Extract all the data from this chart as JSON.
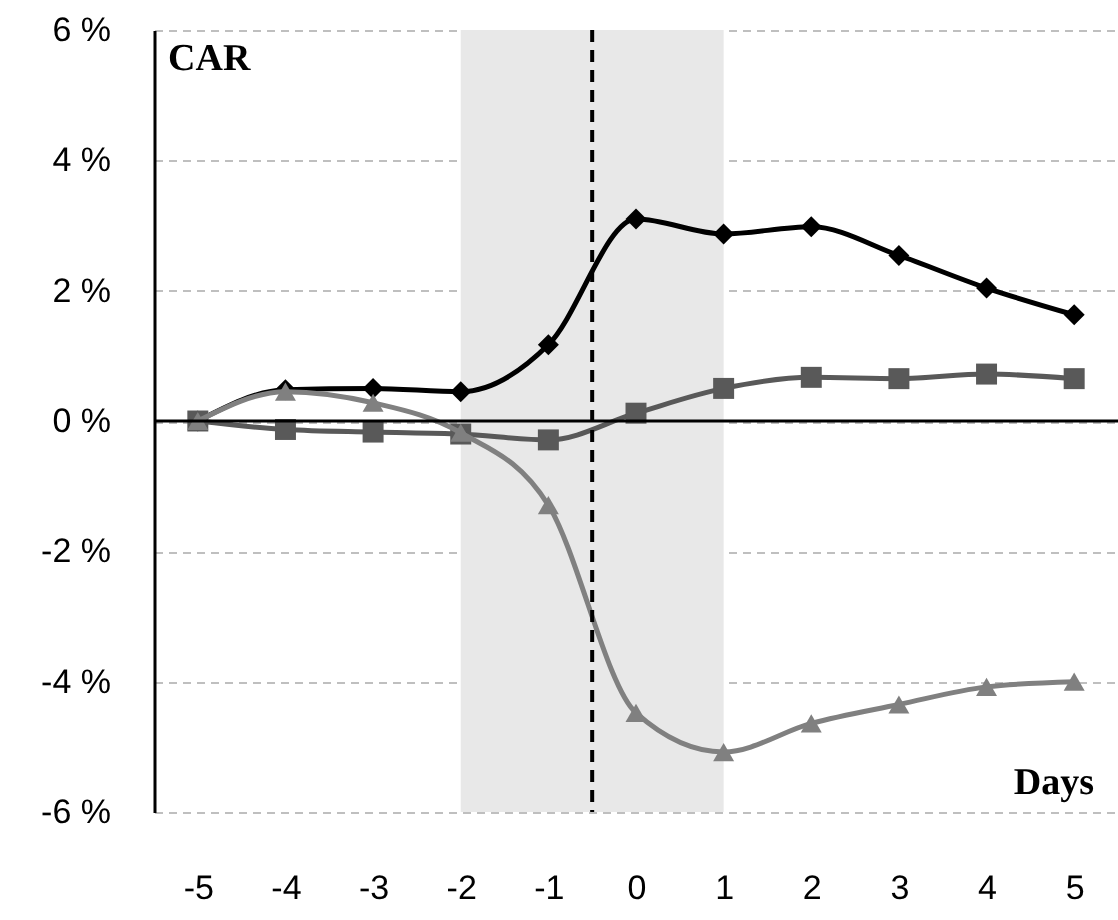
{
  "chart_data": {
    "type": "line",
    "xlabel": "Days",
    "ylabel": "CAR",
    "x": [
      -5,
      -4,
      -3,
      -2,
      -1,
      0,
      1,
      2,
      3,
      4,
      5
    ],
    "xlim": [
      -5.5,
      5.5
    ],
    "xticks": [
      -5,
      -4,
      -3,
      -2,
      -1,
      0,
      1,
      2,
      3,
      4,
      5
    ],
    "ylim": [
      -6,
      6
    ],
    "yticks": [
      {
        "value": -6,
        "label": "-6 %"
      },
      {
        "value": -4,
        "label": "-4 %"
      },
      {
        "value": -2,
        "label": "-2 %"
      },
      {
        "value": 0,
        "label": "0 %"
      },
      {
        "value": 2,
        "label": "2 %"
      },
      {
        "value": 4,
        "label": "4 %"
      },
      {
        "value": 6,
        "label": "6 %"
      }
    ],
    "grid": "y",
    "line_style": "solid",
    "series": [
      {
        "color": "#000000",
        "marker": "diamond",
        "values": [
          0,
          0.48,
          0.5,
          0.45,
          1.17,
          3.1,
          2.87,
          2.98,
          2.54,
          2.04,
          1.63
        ]
      },
      {
        "color": "#595959",
        "marker": "square",
        "values": [
          0,
          -0.13,
          -0.17,
          -0.2,
          -0.29,
          0.12,
          0.5,
          0.67,
          0.65,
          0.72,
          0.65
        ]
      },
      {
        "color": "#808080",
        "marker": "triangle",
        "values": [
          0,
          0.45,
          0.28,
          -0.18,
          -1.29,
          -4.48,
          -5.08,
          -4.64,
          -4.35,
          -4.08,
          -4.0
        ]
      }
    ],
    "bands": [
      {
        "axis": "x",
        "from": -2,
        "to": 1,
        "color": "#e8e8e8"
      }
    ],
    "ref_lines": [
      {
        "axis": "y",
        "value": 0,
        "color": "#000000",
        "line_style": "solid"
      },
      {
        "axis": "x",
        "value": -0.5,
        "color": "#000000",
        "line_style": "dashed"
      }
    ]
  }
}
